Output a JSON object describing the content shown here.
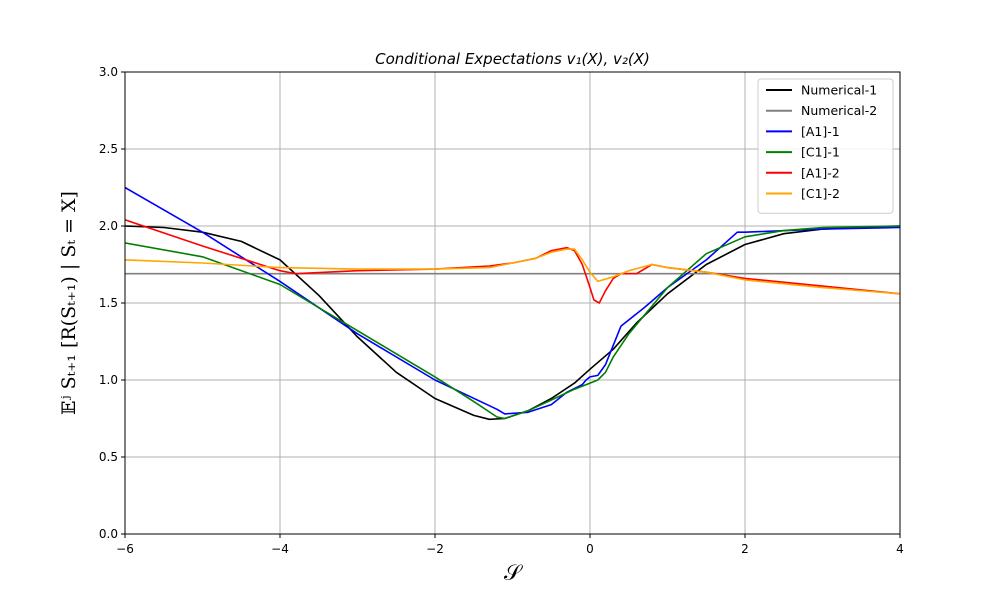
{
  "chart_data": {
    "type": "line",
    "title": "Conditional Expectations v₁(X),  v₂(X)",
    "xlabel": "𝒮",
    "ylabel": "𝔼ʲ Sₜ₊₁ [R(Sₜ₊₁) | Sₜ = X]",
    "xlim": [
      -6,
      4
    ],
    "ylim": [
      0,
      3
    ],
    "xticks": [
      -6,
      -4,
      -2,
      0,
      2,
      4
    ],
    "xtick_labels": [
      "−6",
      "−4",
      "−2",
      "0",
      "2",
      "4"
    ],
    "yticks": [
      0,
      0.5,
      1,
      1.5,
      2,
      2.5,
      3
    ],
    "ytick_labels": [
      "0.0",
      "0.5",
      "1.0",
      "1.5",
      "2.0",
      "2.5",
      "3.0"
    ],
    "grid": true,
    "legend_position": "top-right",
    "series": [
      {
        "name": "Numerical-1",
        "color": "#000000",
        "points": [
          [
            -6,
            2.0
          ],
          [
            -5.5,
            1.99
          ],
          [
            -5,
            1.96
          ],
          [
            -4.5,
            1.9
          ],
          [
            -4,
            1.78
          ],
          [
            -3.5,
            1.55
          ],
          [
            -3,
            1.28
          ],
          [
            -2.5,
            1.05
          ],
          [
            -2,
            0.88
          ],
          [
            -1.5,
            0.77
          ],
          [
            -1.3,
            0.745
          ],
          [
            -1.1,
            0.75
          ],
          [
            -0.8,
            0.8
          ],
          [
            -0.5,
            0.88
          ],
          [
            -0.2,
            0.98
          ],
          [
            0,
            1.07
          ],
          [
            0.3,
            1.2
          ],
          [
            0.6,
            1.37
          ],
          [
            1,
            1.56
          ],
          [
            1.5,
            1.75
          ],
          [
            2,
            1.88
          ],
          [
            2.5,
            1.95
          ],
          [
            3,
            1.98
          ],
          [
            3.5,
            1.99
          ],
          [
            4,
            2.0
          ]
        ]
      },
      {
        "name": "Numerical-2",
        "color": "#808080",
        "points": [
          [
            -6,
            1.69
          ],
          [
            4,
            1.69
          ]
        ]
      },
      {
        "name": "[A1]-1",
        "color": "#0000ff",
        "points": [
          [
            -6,
            2.25
          ],
          [
            -5,
            1.96
          ],
          [
            -4,
            1.64
          ],
          [
            -3,
            1.3
          ],
          [
            -2,
            1.0
          ],
          [
            -1.2,
            0.81
          ],
          [
            -1.1,
            0.78
          ],
          [
            -0.8,
            0.79
          ],
          [
            -0.5,
            0.84
          ],
          [
            -0.3,
            0.92
          ],
          [
            -0.1,
            0.97
          ],
          [
            -0.05,
            1.0
          ],
          [
            0,
            1.02
          ],
          [
            0.1,
            1.03
          ],
          [
            0.2,
            1.1
          ],
          [
            0.4,
            1.35
          ],
          [
            0.7,
            1.47
          ],
          [
            1,
            1.6
          ],
          [
            1.5,
            1.78
          ],
          [
            1.9,
            1.96
          ],
          [
            2,
            1.96
          ],
          [
            3,
            1.98
          ],
          [
            4,
            1.99
          ]
        ]
      },
      {
        "name": "[C1]-1",
        "color": "#008000",
        "points": [
          [
            -6,
            1.89
          ],
          [
            -5,
            1.8
          ],
          [
            -4,
            1.62
          ],
          [
            -3,
            1.32
          ],
          [
            -2,
            1.02
          ],
          [
            -1.5,
            0.86
          ],
          [
            -1.2,
            0.76
          ],
          [
            -1.1,
            0.75
          ],
          [
            -0.8,
            0.8
          ],
          [
            -0.5,
            0.87
          ],
          [
            -0.2,
            0.94
          ],
          [
            0,
            0.98
          ],
          [
            0.1,
            1.0
          ],
          [
            0.2,
            1.05
          ],
          [
            0.3,
            1.15
          ],
          [
            0.5,
            1.3
          ],
          [
            0.8,
            1.48
          ],
          [
            1,
            1.6
          ],
          [
            1.5,
            1.82
          ],
          [
            2,
            1.93
          ],
          [
            2.5,
            1.97
          ],
          [
            3,
            1.99
          ],
          [
            4,
            2.0
          ]
        ]
      },
      {
        "name": "[A1]-2",
        "color": "#ff0000",
        "points": [
          [
            -6,
            2.04
          ],
          [
            -5,
            1.87
          ],
          [
            -4,
            1.71
          ],
          [
            -3.8,
            1.69
          ],
          [
            -3,
            1.71
          ],
          [
            -2,
            1.72
          ],
          [
            -1.3,
            1.74
          ],
          [
            -1,
            1.76
          ],
          [
            -0.7,
            1.79
          ],
          [
            -0.5,
            1.84
          ],
          [
            -0.3,
            1.86
          ],
          [
            -0.2,
            1.84
          ],
          [
            -0.1,
            1.75
          ],
          [
            0,
            1.6
          ],
          [
            0.05,
            1.52
          ],
          [
            0.12,
            1.5
          ],
          [
            0.2,
            1.58
          ],
          [
            0.3,
            1.66
          ],
          [
            0.4,
            1.69
          ],
          [
            0.6,
            1.69
          ],
          [
            0.8,
            1.75
          ],
          [
            1,
            1.73
          ],
          [
            1.5,
            1.7
          ],
          [
            2,
            1.66
          ],
          [
            3,
            1.61
          ],
          [
            4,
            1.56
          ]
        ]
      },
      {
        "name": "[C1]-2",
        "color": "#ffa500",
        "points": [
          [
            -6,
            1.78
          ],
          [
            -5,
            1.76
          ],
          [
            -4,
            1.73
          ],
          [
            -3,
            1.72
          ],
          [
            -2,
            1.72
          ],
          [
            -1.3,
            1.73
          ],
          [
            -1,
            1.76
          ],
          [
            -0.7,
            1.79
          ],
          [
            -0.5,
            1.83
          ],
          [
            -0.3,
            1.85
          ],
          [
            -0.2,
            1.85
          ],
          [
            -0.1,
            1.78
          ],
          [
            0,
            1.7
          ],
          [
            0.1,
            1.64
          ],
          [
            0.3,
            1.67
          ],
          [
            0.5,
            1.71
          ],
          [
            0.8,
            1.75
          ],
          [
            1,
            1.73
          ],
          [
            1.5,
            1.7
          ],
          [
            2,
            1.65
          ],
          [
            3,
            1.6
          ],
          [
            4,
            1.56
          ]
        ]
      }
    ]
  }
}
